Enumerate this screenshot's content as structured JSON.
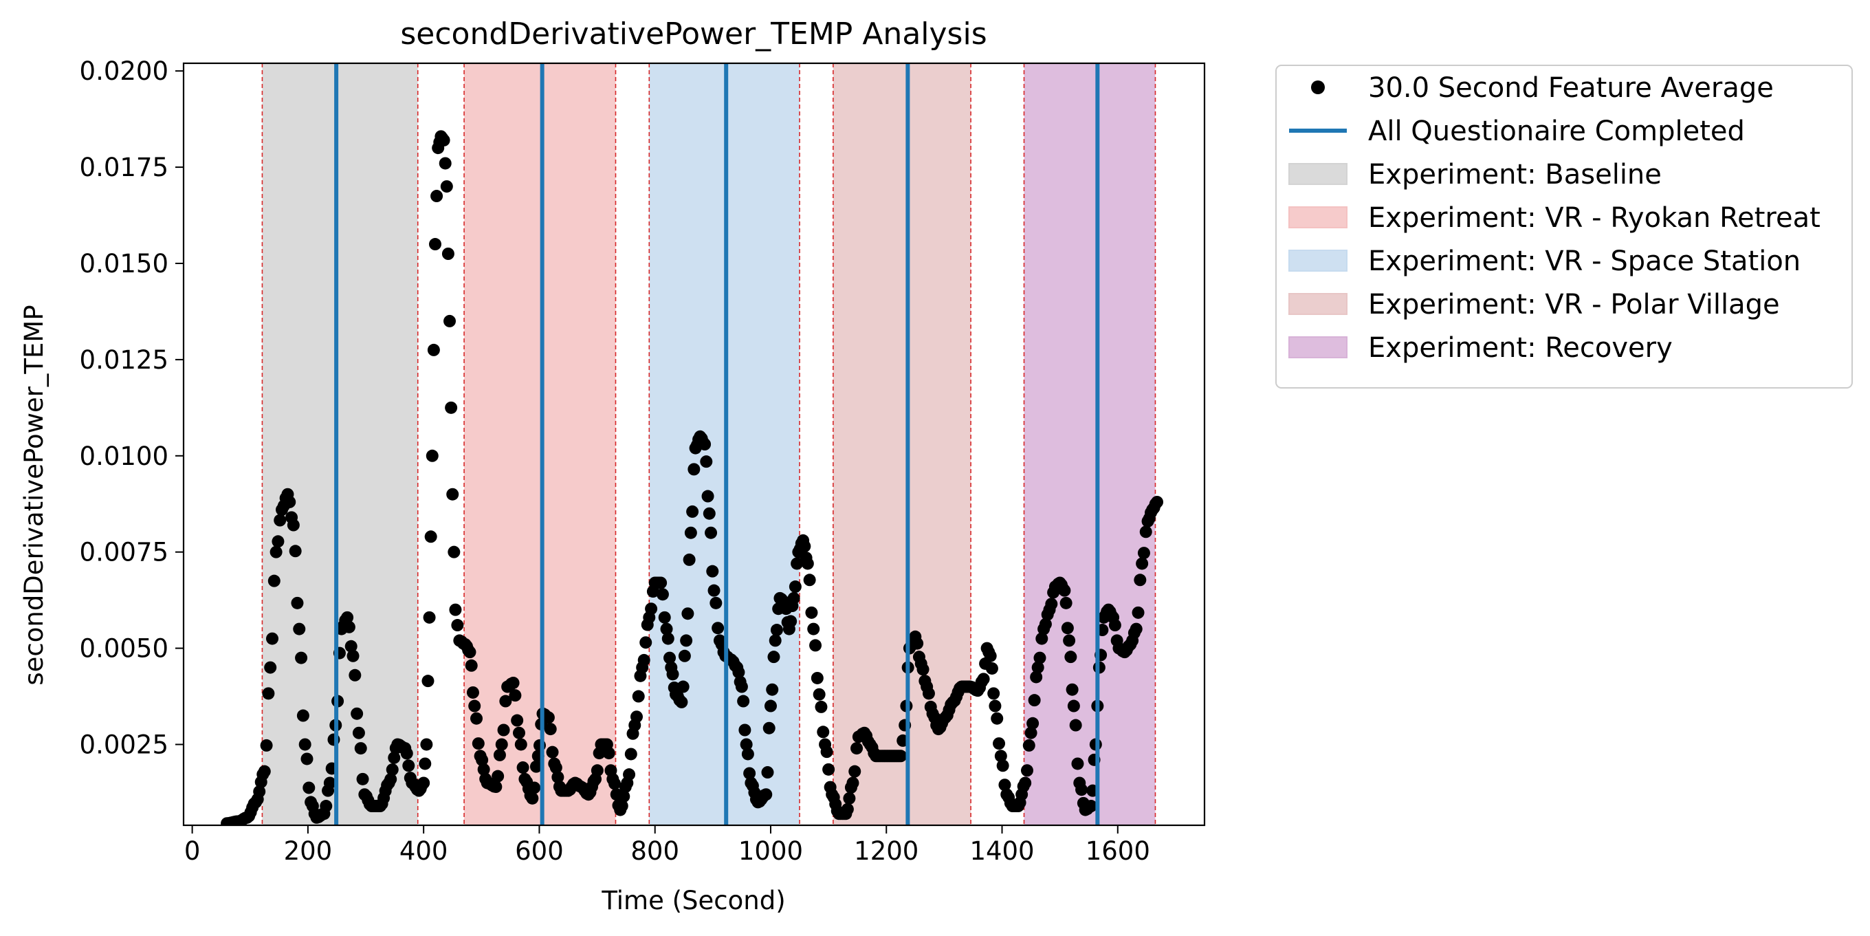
{
  "chart_data": {
    "type": "scatter",
    "title": "secondDerivativePower_TEMP Analysis",
    "xlabel": "Time (Second)",
    "ylabel": "secondDerivativePower_TEMP",
    "xlim": [
      -15,
      1750
    ],
    "ylim": [
      0.0004,
      0.0202
    ],
    "x_ticks": [
      0,
      200,
      400,
      600,
      800,
      1000,
      1200,
      1400,
      1600
    ],
    "y_ticks": [
      0.0025,
      0.005,
      0.0075,
      0.01,
      0.0125,
      0.015,
      0.0175,
      0.02
    ],
    "y_tick_labels": [
      "0.0025",
      "0.0050",
      "0.0075",
      "0.0100",
      "0.0125",
      "0.0150",
      "0.0175",
      "0.0200"
    ],
    "grid": false,
    "legend_position": "outside-upper-right",
    "series": [
      {
        "name": "30.0 Second Feature Average",
        "kind": "points",
        "color": "#000000",
        "anchors": [
          [
            60,
            0.00045
          ],
          [
            80,
            0.0005
          ],
          [
            95,
            0.0006
          ],
          [
            110,
            0.001
          ],
          [
            125,
            0.0018
          ],
          [
            135,
            0.0045
          ],
          [
            145,
            0.0075
          ],
          [
            155,
            0.0086
          ],
          [
            165,
            0.009
          ],
          [
            175,
            0.0082
          ],
          [
            185,
            0.0055
          ],
          [
            195,
            0.0025
          ],
          [
            205,
            0.001
          ],
          [
            215,
            0.0006
          ],
          [
            228,
            0.0007
          ],
          [
            238,
            0.0015
          ],
          [
            248,
            0.003
          ],
          [
            258,
            0.0055
          ],
          [
            268,
            0.0058
          ],
          [
            278,
            0.0048
          ],
          [
            288,
            0.0028
          ],
          [
            298,
            0.0012
          ],
          [
            310,
            0.0009
          ],
          [
            325,
            0.0009
          ],
          [
            340,
            0.0015
          ],
          [
            355,
            0.0025
          ],
          [
            368,
            0.0024
          ],
          [
            380,
            0.0015
          ],
          [
            392,
            0.0013
          ],
          [
            400,
            0.0015
          ],
          [
            405,
            0.0025
          ],
          [
            410,
            0.0058
          ],
          [
            415,
            0.01
          ],
          [
            420,
            0.0155
          ],
          [
            425,
            0.018
          ],
          [
            430,
            0.0183
          ],
          [
            435,
            0.0182
          ],
          [
            440,
            0.017
          ],
          [
            445,
            0.0135
          ],
          [
            450,
            0.009
          ],
          [
            455,
            0.006
          ],
          [
            462,
            0.0052
          ],
          [
            472,
            0.0051
          ],
          [
            480,
            0.0049
          ],
          [
            488,
            0.0035
          ],
          [
            498,
            0.0022
          ],
          [
            510,
            0.0015
          ],
          [
            525,
            0.0014
          ],
          [
            535,
            0.0025
          ],
          [
            545,
            0.004
          ],
          [
            555,
            0.0041
          ],
          [
            565,
            0.0028
          ],
          [
            575,
            0.0016
          ],
          [
            588,
            0.0011
          ],
          [
            598,
            0.0022
          ],
          [
            606,
            0.0033
          ],
          [
            616,
            0.0032
          ],
          [
            626,
            0.002
          ],
          [
            638,
            0.0013
          ],
          [
            650,
            0.0013
          ],
          [
            662,
            0.0015
          ],
          [
            672,
            0.0014
          ],
          [
            685,
            0.0012
          ],
          [
            697,
            0.0016
          ],
          [
            707,
            0.0025
          ],
          [
            717,
            0.0025
          ],
          [
            727,
            0.0016
          ],
          [
            740,
            0.0008
          ],
          [
            752,
            0.0015
          ],
          [
            765,
            0.003
          ],
          [
            778,
            0.0045
          ],
          [
            790,
            0.0058
          ],
          [
            800,
            0.0067
          ],
          [
            810,
            0.0067
          ],
          [
            820,
            0.0055
          ],
          [
            828,
            0.0045
          ],
          [
            836,
            0.0038
          ],
          [
            846,
            0.0036
          ],
          [
            854,
            0.0052
          ],
          [
            862,
            0.008
          ],
          [
            870,
            0.0102
          ],
          [
            878,
            0.0105
          ],
          [
            886,
            0.0103
          ],
          [
            894,
            0.0085
          ],
          [
            902,
            0.0065
          ],
          [
            912,
            0.0052
          ],
          [
            922,
            0.0048
          ],
          [
            932,
            0.0047
          ],
          [
            942,
            0.0045
          ],
          [
            950,
            0.004
          ],
          [
            958,
            0.0025
          ],
          [
            966,
            0.0015
          ],
          [
            978,
            0.001
          ],
          [
            992,
            0.0012
          ],
          [
            1000,
            0.0035
          ],
          [
            1008,
            0.0052
          ],
          [
            1016,
            0.0063
          ],
          [
            1024,
            0.0062
          ],
          [
            1032,
            0.0055
          ],
          [
            1040,
            0.0063
          ],
          [
            1048,
            0.0075
          ],
          [
            1056,
            0.0078
          ],
          [
            1064,
            0.0072
          ],
          [
            1074,
            0.0055
          ],
          [
            1084,
            0.0038
          ],
          [
            1094,
            0.0025
          ],
          [
            1106,
            0.0012
          ],
          [
            1118,
            0.0007
          ],
          [
            1130,
            0.0007
          ],
          [
            1142,
            0.0015
          ],
          [
            1152,
            0.0027
          ],
          [
            1162,
            0.0028
          ],
          [
            1172,
            0.0025
          ],
          [
            1182,
            0.0022
          ],
          [
            1195,
            0.0022
          ],
          [
            1210,
            0.0022
          ],
          [
            1225,
            0.0022
          ],
          [
            1232,
            0.003
          ],
          [
            1240,
            0.005
          ],
          [
            1250,
            0.0053
          ],
          [
            1260,
            0.0046
          ],
          [
            1270,
            0.004
          ],
          [
            1280,
            0.0033
          ],
          [
            1290,
            0.0029
          ],
          [
            1302,
            0.0032
          ],
          [
            1315,
            0.0036
          ],
          [
            1330,
            0.004
          ],
          [
            1345,
            0.004
          ],
          [
            1358,
            0.0039
          ],
          [
            1368,
            0.0042
          ],
          [
            1374,
            0.005
          ],
          [
            1380,
            0.0048
          ],
          [
            1388,
            0.0035
          ],
          [
            1398,
            0.0022
          ],
          [
            1408,
            0.0012
          ],
          [
            1418,
            0.0009
          ],
          [
            1428,
            0.0009
          ],
          [
            1440,
            0.0015
          ],
          [
            1450,
            0.0028
          ],
          [
            1462,
            0.0045
          ],
          [
            1472,
            0.0055
          ],
          [
            1482,
            0.006
          ],
          [
            1492,
            0.0066
          ],
          [
            1500,
            0.0067
          ],
          [
            1508,
            0.0065
          ],
          [
            1516,
            0.0052
          ],
          [
            1524,
            0.0035
          ],
          [
            1534,
            0.0015
          ],
          [
            1544,
            0.0008
          ],
          [
            1554,
            0.0009
          ],
          [
            1562,
            0.0025
          ],
          [
            1568,
            0.0045
          ],
          [
            1576,
            0.0058
          ],
          [
            1584,
            0.006
          ],
          [
            1592,
            0.0058
          ],
          [
            1602,
            0.005
          ],
          [
            1612,
            0.0049
          ],
          [
            1622,
            0.0051
          ],
          [
            1632,
            0.0055
          ],
          [
            1642,
            0.0072
          ],
          [
            1652,
            0.0083
          ],
          [
            1660,
            0.0086
          ],
          [
            1668,
            0.0088
          ]
        ]
      },
      {
        "name": "All Questionaire Completed",
        "kind": "vlines",
        "color": "#1f77b4",
        "x": [
          249,
          605,
          923,
          1237,
          1565
        ]
      }
    ],
    "regions": [
      {
        "name": "Experiment: Baseline",
        "start": 121,
        "end": 390,
        "color": "#d3d3d3"
      },
      {
        "name": "Experiment: VR - Ryokan Retreat",
        "start": 470,
        "end": 732,
        "color": "#f4c2c2"
      },
      {
        "name": "Experiment: VR - Space Station",
        "start": 790,
        "end": 1050,
        "color": "#c6dbef"
      },
      {
        "name": "Experiment: VR - Polar Village",
        "start": 1108,
        "end": 1346,
        "color": "#e8c6c6"
      },
      {
        "name": "Experiment: Recovery",
        "start": 1438,
        "end": 1665,
        "color": "#d8b2d8"
      }
    ],
    "region_edge_color": "#d62728",
    "legend": [
      {
        "label": "30.0 Second Feature Average",
        "marker": "dot",
        "color": "#000000"
      },
      {
        "label": "All Questionaire Completed",
        "marker": "line",
        "color": "#1f77b4"
      },
      {
        "label": "Experiment: Baseline",
        "marker": "patch",
        "color": "#d3d3d3"
      },
      {
        "label": "Experiment: VR - Ryokan Retreat",
        "marker": "patch",
        "color": "#f4c2c2"
      },
      {
        "label": "Experiment: VR - Space Station",
        "marker": "patch",
        "color": "#c6dbef"
      },
      {
        "label": "Experiment: VR - Polar Village",
        "marker": "patch",
        "color": "#e8c6c6"
      },
      {
        "label": "Experiment: Recovery",
        "marker": "patch",
        "color": "#d8b2d8"
      }
    ]
  }
}
